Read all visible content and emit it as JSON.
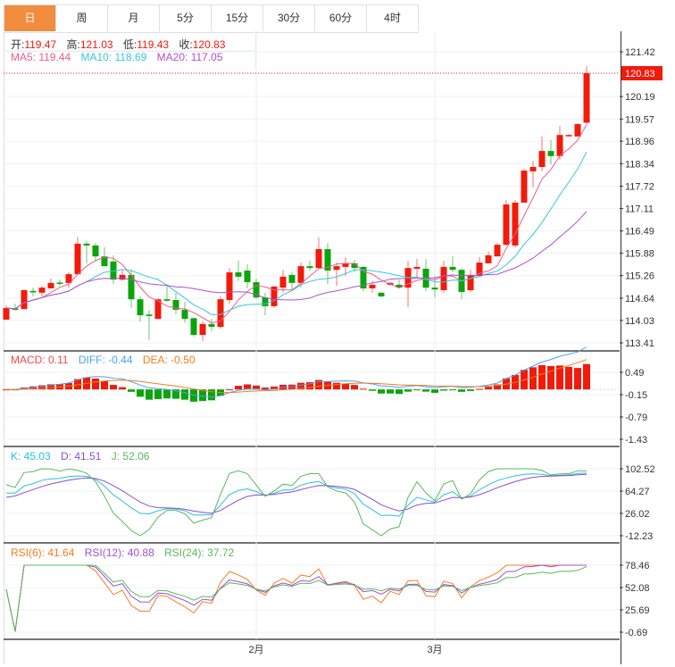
{
  "tabs": [
    "日",
    "周",
    "月",
    "5分",
    "15分",
    "30分",
    "60分",
    "4时"
  ],
  "active_tab": 0,
  "ohlc_legend": {
    "open_label": "开:",
    "open": "119.47",
    "high_label": "高:",
    "high": "121.03",
    "low_label": "低:",
    "low": "119.43",
    "close_label": "收:",
    "close": "120.83"
  },
  "ma_legend": {
    "ma5": "MA5: 119.44",
    "ma10": "MA10: 118.69",
    "ma20": "MA20: 117.05"
  },
  "macd_legend": {
    "macd": "MACD: 0.11",
    "diff": "DIFF: -0.44",
    "dea": "DEA: -0.50"
  },
  "kdj_legend": {
    "k": "K: 45.03",
    "d": "D: 41.51",
    "j": "J: 52.06"
  },
  "rsi_legend": {
    "rsi6": "RSI(6): 41.64",
    "rsi12": "RSI(12): 40.88",
    "rsi24": "RSI(24): 37.72"
  },
  "colors": {
    "up": "#f21a0a",
    "down": "#0aa50a",
    "ma5": "#ee5c8c",
    "ma10": "#36c6e0",
    "ma20": "#b04fd0",
    "macd": "#f04848",
    "diff": "#4aa3f0",
    "dea": "#f57c1f",
    "k": "#2cbfe0",
    "d": "#8a4fd0",
    "j": "#5cb85c",
    "rsi6": "#f57c1f",
    "rsi12": "#a050d0",
    "rsi24": "#5cb85c"
  },
  "chart_data": {
    "type": "candlestick",
    "current_price": "120.83",
    "price_ticks": [
      "121.42",
      "120.19",
      "119.57",
      "118.96",
      "118.34",
      "117.72",
      "117.11",
      "116.49",
      "115.88",
      "115.26",
      "114.64",
      "114.03",
      "113.41"
    ],
    "price_range": [
      113.41,
      121.42
    ],
    "macd_ticks": [
      "0.49",
      "-0.15",
      "-0.79",
      "-1.43"
    ],
    "macd_range": [
      -1.43,
      0.49
    ],
    "kdj_ticks": [
      "102.52",
      "64.27",
      "26.02",
      "-12.23"
    ],
    "kdj_range": [
      -12.23,
      102.52
    ],
    "rsi_ticks": [
      "78.46",
      "52.08",
      "25.69",
      "-0.69"
    ],
    "rsi_range": [
      -0.69,
      78.46
    ],
    "x_labels": [
      {
        "index": 28,
        "label": "2月"
      },
      {
        "index": 48,
        "label": "3月"
      }
    ],
    "candles_ohlc": [
      [
        114.05,
        114.44,
        114.05,
        114.37
      ],
      [
        114.36,
        114.49,
        114.29,
        114.32
      ],
      [
        114.34,
        114.88,
        114.34,
        114.86
      ],
      [
        114.84,
        114.93,
        114.69,
        114.8
      ],
      [
        114.79,
        114.98,
        114.69,
        114.93
      ],
      [
        114.91,
        115.18,
        114.91,
        115.06
      ],
      [
        115.07,
        115.15,
        114.98,
        115.04
      ],
      [
        115.06,
        115.35,
        114.93,
        115.3
      ],
      [
        115.3,
        116.33,
        115.28,
        116.14
      ],
      [
        116.14,
        116.22,
        115.6,
        116.09
      ],
      [
        116.09,
        116.16,
        115.65,
        115.79
      ],
      [
        115.79,
        116.04,
        115.52,
        115.52
      ],
      [
        115.65,
        115.82,
        115.03,
        115.15
      ],
      [
        115.15,
        115.42,
        115.12,
        115.28
      ],
      [
        115.28,
        115.42,
        114.37,
        114.61
      ],
      [
        114.61,
        114.69,
        114.0,
        114.17
      ],
      [
        114.19,
        114.32,
        113.48,
        114.15
      ],
      [
        114.07,
        114.63,
        114.07,
        114.61
      ],
      [
        114.61,
        115.03,
        114.54,
        114.57
      ],
      [
        114.59,
        114.79,
        114.2,
        114.32
      ],
      [
        114.32,
        114.54,
        113.97,
        114.07
      ],
      [
        114.09,
        114.1,
        113.58,
        113.63
      ],
      [
        113.63,
        114.0,
        113.46,
        113.93
      ],
      [
        113.93,
        114.07,
        113.73,
        113.85
      ],
      [
        113.85,
        114.69,
        113.8,
        114.61
      ],
      [
        114.59,
        115.47,
        114.49,
        115.35
      ],
      [
        115.35,
        115.67,
        115.11,
        115.23
      ],
      [
        115.4,
        115.57,
        114.91,
        115.08
      ],
      [
        115.08,
        115.18,
        114.61,
        114.66
      ],
      [
        114.66,
        114.79,
        114.17,
        114.42
      ],
      [
        114.42,
        114.98,
        114.37,
        114.96
      ],
      [
        114.93,
        115.42,
        114.79,
        115.23
      ],
      [
        115.28,
        115.35,
        114.86,
        115.06
      ],
      [
        115.06,
        115.62,
        114.93,
        115.52
      ],
      [
        115.52,
        115.67,
        115.4,
        115.47
      ],
      [
        115.47,
        116.31,
        115.47,
        115.99
      ],
      [
        115.99,
        116.16,
        115.03,
        115.4
      ],
      [
        115.42,
        115.62,
        114.98,
        115.52
      ],
      [
        115.5,
        115.77,
        115.25,
        115.6
      ],
      [
        115.6,
        115.7,
        115.35,
        115.47
      ],
      [
        115.5,
        115.52,
        114.83,
        114.91
      ],
      [
        114.91,
        115.11,
        114.79,
        115.01
      ],
      [
        114.79,
        114.81,
        114.66,
        114.69
      ],
      [
        115.01,
        115.08,
        114.98,
        115.06
      ],
      [
        115.01,
        115.15,
        114.91,
        114.93
      ],
      [
        114.93,
        115.67,
        114.39,
        115.47
      ],
      [
        115.45,
        115.72,
        115.2,
        115.5
      ],
      [
        115.45,
        115.72,
        114.83,
        114.93
      ],
      [
        114.93,
        115.25,
        114.66,
        114.88
      ],
      [
        114.86,
        115.67,
        114.79,
        115.5
      ],
      [
        115.5,
        115.79,
        115.35,
        115.42
      ],
      [
        115.42,
        115.47,
        114.61,
        114.81
      ],
      [
        114.86,
        115.42,
        114.81,
        115.28
      ],
      [
        115.25,
        115.77,
        115.25,
        115.62
      ],
      [
        115.6,
        115.92,
        115.6,
        115.82
      ],
      [
        115.79,
        116.16,
        115.79,
        116.11
      ],
      [
        116.11,
        117.34,
        116.09,
        117.22
      ],
      [
        116.09,
        117.34,
        116.04,
        117.27
      ],
      [
        117.27,
        118.2,
        117.27,
        118.15
      ],
      [
        118.13,
        118.42,
        117.69,
        118.25
      ],
      [
        118.25,
        119.09,
        118.13,
        118.69
      ],
      [
        118.69,
        118.99,
        118.32,
        118.55
      ],
      [
        118.55,
        119.38,
        118.45,
        119.13
      ],
      [
        119.13,
        119.15,
        119.11,
        119.13
      ],
      [
        119.09,
        119.45,
        119.09,
        119.43
      ],
      [
        119.47,
        121.03,
        119.43,
        120.83
      ]
    ]
  }
}
